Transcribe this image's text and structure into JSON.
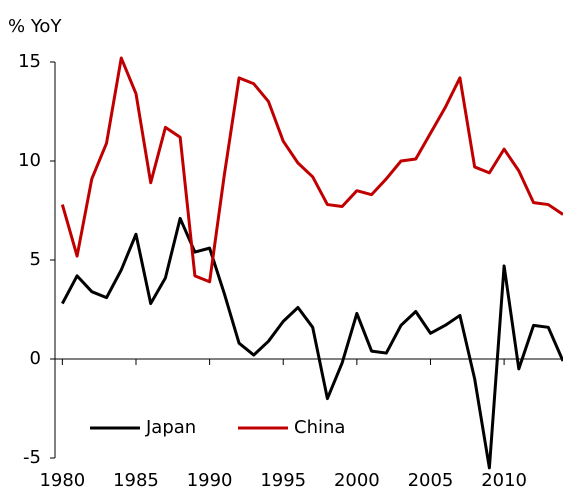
{
  "chart_data": {
    "type": "line",
    "ylabel": "% YoY",
    "x": [
      1980,
      1981,
      1982,
      1983,
      1984,
      1985,
      1986,
      1987,
      1988,
      1989,
      1990,
      1991,
      1992,
      1993,
      1994,
      1995,
      1996,
      1997,
      1998,
      1999,
      2000,
      2001,
      2002,
      2003,
      2004,
      2005,
      2006,
      2007,
      2008,
      2009,
      2010,
      2011,
      2012,
      2013,
      2014
    ],
    "series": [
      {
        "name": "Japan",
        "color": "#000000",
        "values": [
          2.8,
          4.2,
          3.4,
          3.1,
          4.5,
          6.3,
          2.8,
          4.1,
          7.1,
          5.4,
          5.6,
          3.3,
          0.8,
          0.2,
          0.9,
          1.9,
          2.6,
          1.6,
          -2.0,
          -0.2,
          2.3,
          0.4,
          0.3,
          1.7,
          2.4,
          1.3,
          1.7,
          2.2,
          -1.0,
          -5.5,
          4.7,
          -0.5,
          1.7,
          1.6,
          -0.1
        ]
      },
      {
        "name": "China",
        "color": "#c00000",
        "values": [
          7.8,
          5.2,
          9.1,
          10.9,
          15.2,
          13.4,
          8.9,
          11.7,
          11.2,
          4.2,
          3.9,
          9.3,
          14.2,
          13.9,
          13.0,
          11.0,
          9.9,
          9.2,
          7.8,
          7.7,
          8.5,
          8.3,
          9.1,
          10.0,
          10.1,
          11.4,
          12.7,
          14.2,
          9.7,
          9.4,
          10.6,
          9.5,
          7.9,
          7.8,
          7.3
        ]
      }
    ],
    "xlim": [
      1979.5,
      2014
    ],
    "xticks": [
      1980,
      1985,
      1990,
      1995,
      2000,
      2005,
      2010
    ],
    "ylim": [
      -5,
      15
    ],
    "yticks": [
      -5,
      0,
      5,
      10,
      15
    ],
    "legend": "lower left"
  }
}
